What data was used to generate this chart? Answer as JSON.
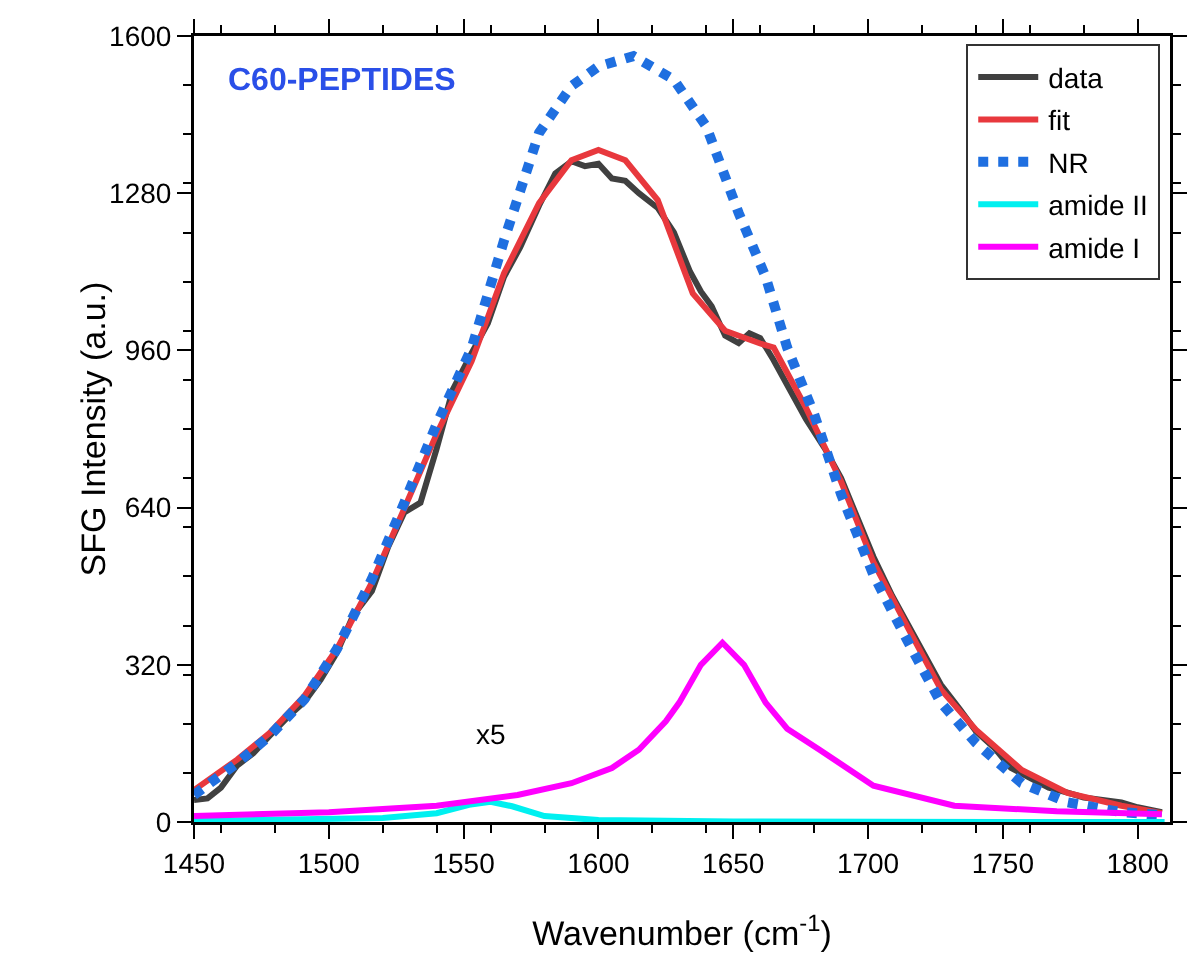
{
  "chart_data": {
    "type": "line",
    "title": "C60-PEPTIDES",
    "xlabel": "Wavenumber (cm$^{-1}$)",
    "ylabel": "SFG Intensity (a.u.)",
    "annotations": [
      {
        "text": "x5",
        "x": 1560,
        "y": 41
      }
    ],
    "xlim": [
      1450,
      1812
    ],
    "xticks": [
      1450,
      1500,
      1550,
      1600,
      1650,
      1700,
      1750,
      1800
    ],
    "ylim": [
      0,
      1600
    ],
    "yticks": [
      0,
      320,
      640,
      960,
      1280,
      1600
    ],
    "grid": false,
    "legend": "top right",
    "marker": "none",
    "series": [
      {
        "name": "data",
        "color": "#404040",
        "line_style": "solid",
        "x": [
          1450,
          1455,
          1460,
          1466,
          1472,
          1478,
          1485,
          1491,
          1497,
          1503,
          1509,
          1516,
          1522,
          1528,
          1534,
          1540,
          1546,
          1553,
          1559,
          1565,
          1571,
          1578,
          1584,
          1590,
          1595,
          1600,
          1605,
          1610,
          1615,
          1622,
          1628,
          1634,
          1638,
          1642,
          1647,
          1652,
          1656,
          1660,
          1665,
          1671,
          1677,
          1684,
          1690,
          1696,
          1702,
          1709,
          1715,
          1721,
          1727,
          1734,
          1740,
          1747,
          1753,
          1760,
          1767,
          1774,
          1780,
          1787,
          1794,
          1800,
          1809
        ],
        "values": [
          45,
          48,
          70,
          115,
          140,
          175,
          215,
          245,
          290,
          345,
          420,
          470,
          560,
          630,
          650,
          760,
          880,
          955,
          1015,
          1110,
          1170,
          1255,
          1320,
          1345,
          1335,
          1340,
          1310,
          1305,
          1280,
          1250,
          1200,
          1120,
          1080,
          1050,
          990,
          975,
          995,
          985,
          940,
          880,
          820,
          760,
          700,
          620,
          540,
          460,
          400,
          340,
          280,
          230,
          185,
          150,
          110,
          90,
          70,
          60,
          50,
          45,
          40,
          30,
          20
        ]
      },
      {
        "name": "fit",
        "color": "#e8383d",
        "line_style": "solid",
        "x": [
          1450,
          1466,
          1478,
          1491,
          1503,
          1516,
          1528,
          1540,
          1553,
          1565,
          1578,
          1590,
          1600,
          1610,
          1622,
          1635,
          1647,
          1660,
          1665,
          1677,
          1690,
          1702,
          1715,
          1727,
          1740,
          1757,
          1774,
          1794,
          1809
        ],
        "values": [
          65,
          127,
          181,
          257,
          352,
          488,
          638,
          790,
          938,
          1117,
          1260,
          1347,
          1368,
          1347,
          1266,
          1076,
          1000,
          974,
          966,
          843,
          693,
          529,
          393,
          270,
          188,
          106,
          59,
          33,
          18
        ]
      },
      {
        "name": "NR",
        "color": "#1f6fe0",
        "line_style": "dotted",
        "x": [
          1450,
          1466,
          1478,
          1491,
          1503,
          1516,
          1528,
          1540,
          1553,
          1565,
          1578,
          1590,
          1600,
          1613,
          1628,
          1640,
          1652,
          1662,
          1670,
          1680,
          1690,
          1702,
          1715,
          1727,
          1740,
          1757,
          1774,
          1794,
          1809
        ],
        "values": [
          55,
          120,
          175,
          250,
          352,
          495,
          650,
          810,
          965,
          1184,
          1403,
          1498,
          1538,
          1559,
          1511,
          1416,
          1240,
          1110,
          966,
          830,
          667,
          503,
          365,
          243,
          161,
          79,
          40,
          20,
          14
        ]
      },
      {
        "name": "amide II",
        "color": "#00f0f0",
        "line_style": "solid",
        "x": [
          1450,
          1520,
          1540,
          1552,
          1560,
          1568,
          1580,
          1600,
          1650,
          1750,
          1810
        ],
        "values": [
          2,
          8,
          18,
          35,
          41,
          32,
          12,
          4,
          1,
          0,
          0
        ]
      },
      {
        "name": "amide I",
        "color": "#ff00ff",
        "line_style": "solid",
        "x": [
          1450,
          1500,
          1540,
          1570,
          1590,
          1605,
          1615,
          1625,
          1630,
          1638,
          1646,
          1654,
          1662,
          1670,
          1682,
          1702,
          1732,
          1770,
          1809
        ],
        "values": [
          12,
          20,
          33,
          55,
          79,
          110,
          147,
          205,
          243,
          320,
          365,
          320,
          243,
          190,
          147,
          74,
          33,
          22,
          16
        ]
      }
    ]
  }
}
